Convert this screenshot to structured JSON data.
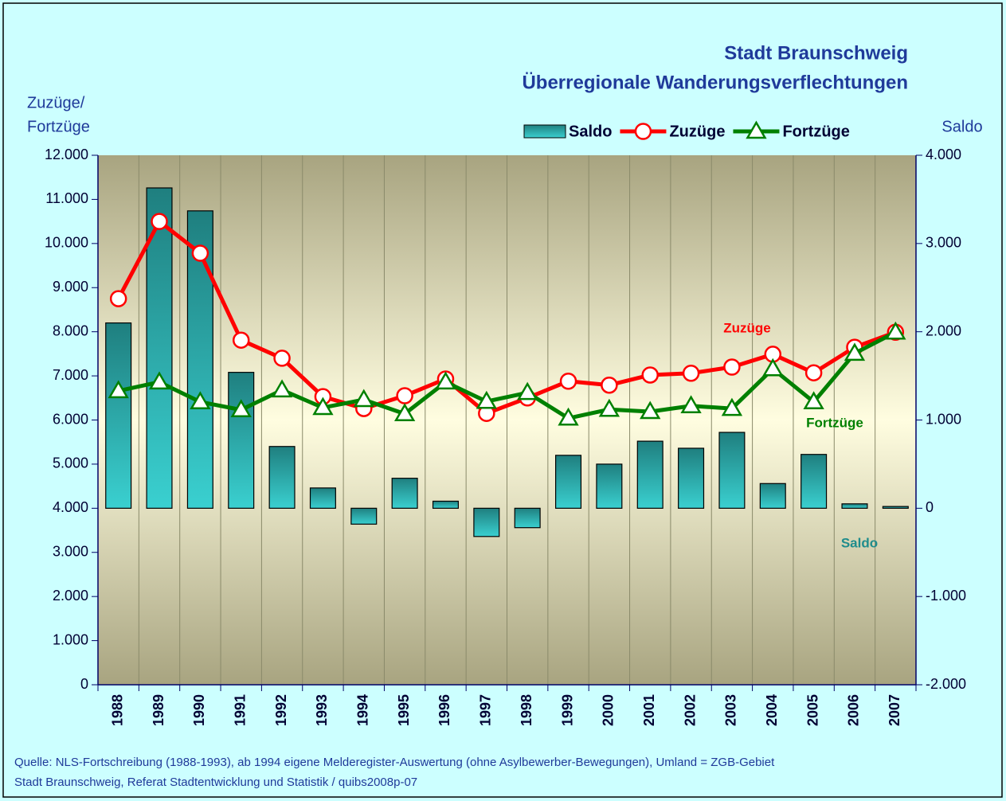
{
  "chart_data": {
    "type": "combo",
    "title": "Stadt Braunschweig",
    "subtitle": "Überregionale Wanderungsverflechtungen",
    "y_label": [
      "Zuzüge/",
      "Fortzüge"
    ],
    "y2_label": "Saldo",
    "categories": [
      "1988",
      "1989",
      "1990",
      "1991",
      "1992",
      "1993",
      "1994",
      "1995",
      "1996",
      "1997",
      "1998",
      "1999",
      "2000",
      "2001",
      "2002",
      "2003",
      "2004",
      "2005",
      "2006",
      "2007"
    ],
    "series": [
      {
        "name": "Saldo",
        "type": "bar",
        "axis": "y2",
        "color": "#1f8c8c",
        "values": [
          2100,
          3630,
          3370,
          1540,
          700,
          230,
          -180,
          340,
          80,
          -320,
          -220,
          600,
          500,
          760,
          680,
          860,
          280,
          610,
          50,
          20
        ]
      },
      {
        "name": "Zuzüge",
        "type": "line",
        "marker": "circle",
        "color": "#ff0000",
        "values": [
          8750,
          10500,
          9780,
          7810,
          7400,
          6530,
          6260,
          6550,
          6930,
          6150,
          6500,
          6880,
          6790,
          7020,
          7060,
          7200,
          7490,
          7070,
          7650,
          7990
        ]
      },
      {
        "name": "Fortzüge",
        "type": "line",
        "marker": "triangle",
        "color": "#008000",
        "values": [
          6660,
          6860,
          6410,
          6230,
          6680,
          6280,
          6460,
          6140,
          6860,
          6420,
          6620,
          6040,
          6240,
          6190,
          6320,
          6260,
          7160,
          6410,
          7510,
          7990
        ]
      }
    ],
    "annotations": [
      "Zuzüge",
      "Fortzüge",
      "Saldo"
    ],
    "ylim": [
      0,
      12000
    ],
    "yticks": [
      0,
      {
        "value": 1000,
        "label": "1.000"
      },
      {
        "value": 2000,
        "label": "2.000"
      },
      {
        "value": 3000,
        "label": "3.000"
      },
      {
        "value": 4000,
        "label": "4.000"
      },
      {
        "value": 5000,
        "label": "5.000"
      },
      {
        "value": 6000,
        "label": "6.000"
      },
      {
        "value": 7000,
        "label": "7.000"
      },
      {
        "value": 8000,
        "label": "8.000"
      },
      {
        "value": 9000,
        "label": "9.000"
      },
      {
        "value": 10000,
        "label": "10.000"
      },
      {
        "value": 11000,
        "label": "11.000"
      },
      {
        "value": 12000,
        "label": "12.000"
      }
    ],
    "y2lim": [
      -2000,
      4000
    ],
    "y2ticks": [
      {
        "value": -2000,
        "label": "-2.000"
      },
      {
        "value": -1000,
        "label": "-1.000"
      },
      0,
      {
        "value": 1000,
        "label": "1.000"
      },
      {
        "value": 2000,
        "label": "2.000"
      },
      {
        "value": 3000,
        "label": "3.000"
      },
      {
        "value": 4000,
        "label": "4.000"
      }
    ],
    "grid": "x",
    "legend": "top-right",
    "source": [
      "Quelle: NLS-Fortschreibung (1988-1993), ab 1994 eigene Melderegister-Auswertung (ohne Asylbewerber-Bewegungen), Umland = ZGB-Gebiet",
      "Stadt Braunschweig, Referat Stadtentwicklung und Statistik / quibs2008p-07"
    ]
  }
}
